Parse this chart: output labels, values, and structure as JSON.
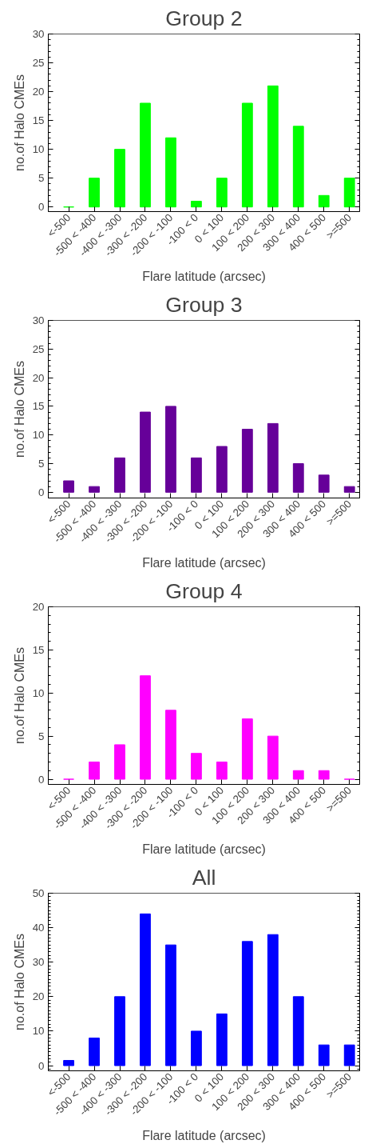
{
  "chart_data": [
    {
      "type": "bar",
      "title": "Group 2",
      "xlabel": "Flare latitude (arcsec)",
      "ylabel": "no.of Halo CMEs",
      "categories": [
        "<-500",
        "-500 < -400",
        "-400 < -300",
        "-300 < -200",
        "-200 < -100",
        "-100 < 0",
        "0 < 100",
        "100 < 200",
        "200 < 300",
        "300 < 400",
        "400 < 500",
        ">=500"
      ],
      "values": [
        0,
        5,
        10,
        18,
        12,
        1,
        5,
        18,
        21,
        14,
        2,
        5
      ],
      "color": "#00ff00",
      "ylim": [
        -0.8,
        30
      ],
      "yticks": [
        0,
        5,
        10,
        15,
        20,
        25,
        30
      ],
      "grid": false
    },
    {
      "type": "bar",
      "title": "Group 3",
      "xlabel": "Flare latitude (arcsec)",
      "ylabel": "no.of Halo CMEs",
      "categories": [
        "<-500",
        "-500 < -400",
        "-400 < -300",
        "-300 < -200",
        "-200 < -100",
        "-100 < 0",
        "0 < 100",
        "100 < 200",
        "200 < 300",
        "300 < 400",
        "400 < 500",
        ">=500"
      ],
      "values": [
        2,
        1,
        6,
        14,
        15,
        6,
        8,
        11,
        12,
        5,
        3,
        1
      ],
      "color": "#660099",
      "ylim": [
        -1,
        30
      ],
      "yticks": [
        0,
        5,
        10,
        15,
        20,
        25,
        30
      ],
      "grid": false
    },
    {
      "type": "bar",
      "title": "Group 4",
      "xlabel": "Flare latitude (arcsec)",
      "ylabel": "no.of Halo CMEs",
      "categories": [
        "<-500",
        "-500 < -400",
        "-400 < -300",
        "-300 < -200",
        "-200 < -100",
        "-100 < 0",
        "0 < 100",
        "100 < 200",
        "200 < 300",
        "300 < 400",
        "400 < 500",
        ">=500"
      ],
      "values": [
        0,
        2,
        4,
        12,
        8,
        3,
        2,
        7,
        5,
        1,
        1,
        0
      ],
      "color": "#ff00ff",
      "ylim": [
        -0.6,
        20
      ],
      "yticks": [
        0,
        5,
        10,
        15,
        20
      ],
      "grid": false
    },
    {
      "type": "bar",
      "title": "All",
      "xlabel": "Flare latitude (arcsec)",
      "ylabel": "no.of Halo CMEs",
      "categories": [
        "<-500",
        "-500 < -400",
        "-400 < -300",
        "-300 < -200",
        "-200 < -100",
        "-100 < 0",
        "0 < 100",
        "100 < 200",
        "200 < 300",
        "300 < 400",
        "400 < 500",
        ">=500"
      ],
      "values": [
        1.5,
        8,
        20,
        44,
        35,
        10,
        15,
        36,
        38,
        20,
        6,
        6
      ],
      "color": "#0000ff",
      "ylim": [
        -1.5,
        50
      ],
      "yticks": [
        0,
        10,
        20,
        30,
        40,
        50
      ],
      "grid": false
    }
  ]
}
